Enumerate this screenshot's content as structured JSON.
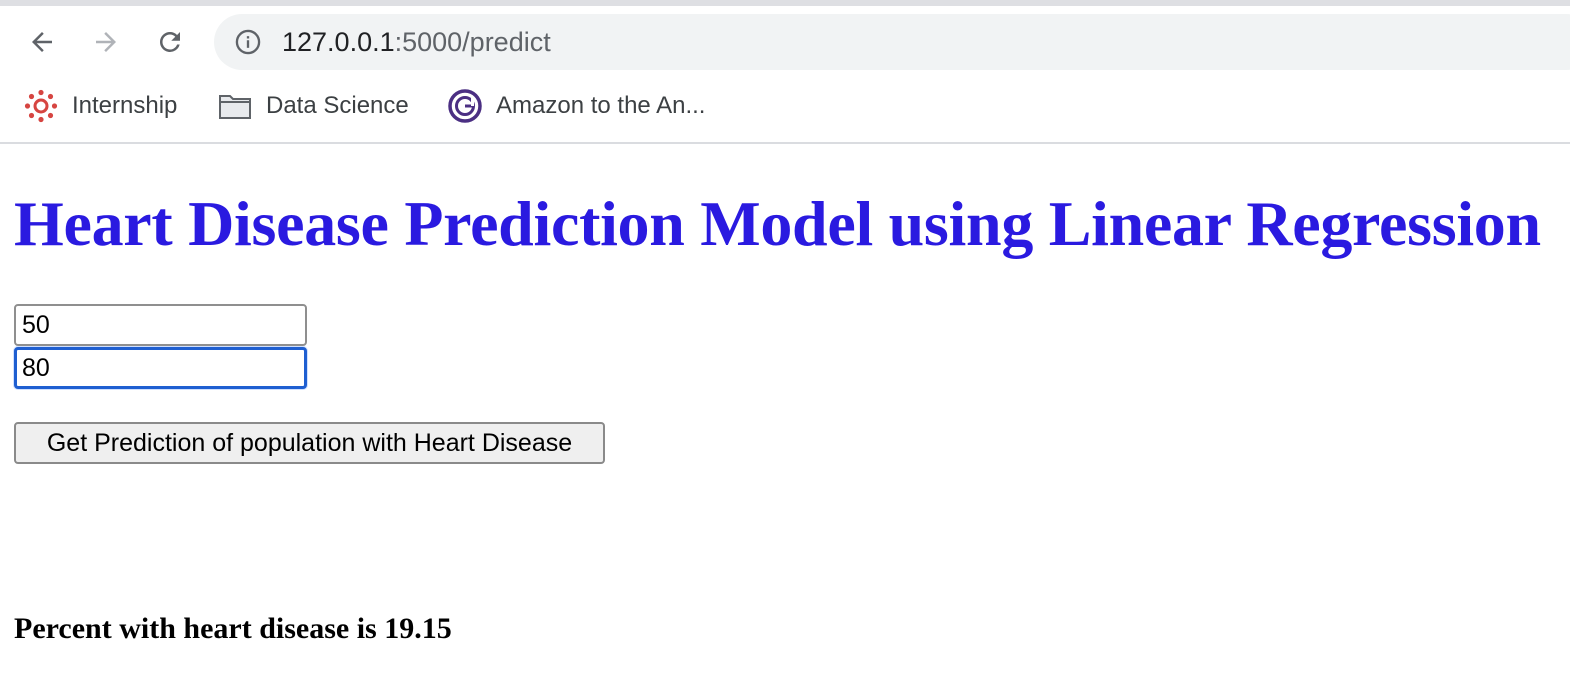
{
  "browser": {
    "url_host": "127.0.0.1",
    "url_rest": ":5000/predict",
    "bookmarks": [
      {
        "label": "Internship",
        "icon": "canvas-logo-icon"
      },
      {
        "label": "Data Science",
        "icon": "folder-icon"
      },
      {
        "label": "Amazon to the An...",
        "icon": "g-logo-icon"
      }
    ]
  },
  "main": {
    "title": "Heart Disease Prediction Model using Linear Regression",
    "inputs": [
      {
        "value": "50"
      },
      {
        "value": "80"
      }
    ],
    "submit_label": "Get Prediction of population with Heart Disease",
    "result_text": "Percent with heart disease is 19.15"
  },
  "colors": {
    "title": "#2a1ae0",
    "focus_ring": "#1f5fd1",
    "canvas_logo": "#d64541",
    "g_logo": "#4b2f83"
  }
}
